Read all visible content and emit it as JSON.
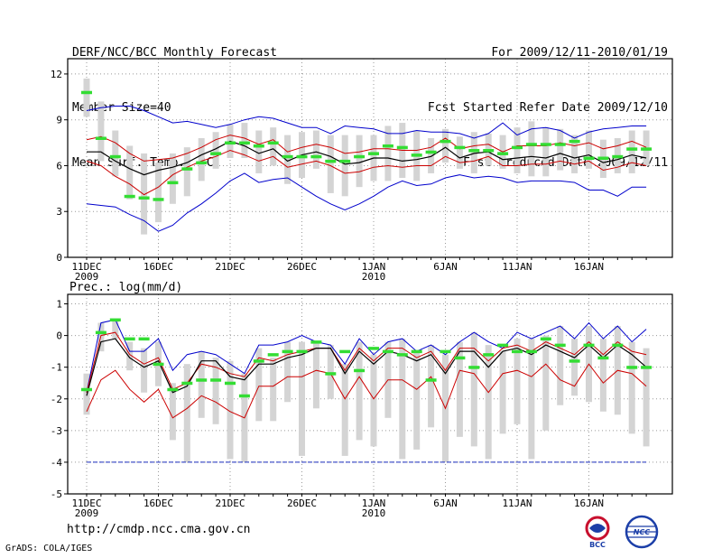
{
  "header": {
    "left_lines": [
      "DERF/NCC/BCC Monthly Forecast",
      "Member Size=40",
      "Mean Surf. Temp.: °C"
    ],
    "right_lines": [
      "For 2009/12/11-2010/01/19",
      "Fcst Started Refer Date 2009/12/10",
      "Fcst Produced Date 2009/12/11"
    ]
  },
  "footer": {
    "url": "http://cmdp.ncc.cma.gov.cn",
    "grads": "GrADS: COLA/IGES"
  },
  "logos": {
    "left": "BCC",
    "right": "NCC",
    "left_icon": "bcc-logo-icon",
    "right_icon": "ncc-logo-icon"
  },
  "colors": {
    "ensemble_max_min": "#0000cc",
    "spread": "#cc0000",
    "mean": "#000000",
    "box": "#d4d4d4",
    "observed": "#33dd33",
    "reference": "#1b2dbf"
  },
  "chart_data": [
    {
      "id": "temperature",
      "type": "line",
      "title": "Mean Surf. Temp.: °C",
      "ylim": [
        0,
        13
      ],
      "yticks": [
        0,
        3,
        6,
        9,
        12
      ],
      "xtick_labels": [
        "11DEC",
        "16DEC",
        "21DEC",
        "26DEC",
        "1JAN",
        "6JAN",
        "11JAN",
        "16JAN"
      ],
      "xtick_year_labels": [
        {
          "at": "11DEC",
          "label": "2009"
        },
        {
          "at": "1JAN",
          "label": "2010"
        }
      ],
      "days": 40,
      "series": [
        {
          "name": "max",
          "values": [
            9.6,
            9.8,
            9.9,
            9.9,
            9.6,
            9.2,
            8.8,
            8.9,
            8.7,
            8.5,
            8.7,
            9.0,
            9.2,
            9.1,
            8.8,
            8.5,
            8.5,
            8.1,
            8.6,
            8.5,
            8.4,
            8.1,
            8.1,
            8.3,
            8.2,
            8.2,
            8.1,
            7.8,
            8.1,
            8.8,
            8.0,
            8.4,
            8.5,
            8.3,
            7.8,
            8.2,
            8.4,
            8.5,
            8.6,
            8.6
          ]
        },
        {
          "name": "upper",
          "values": [
            7.7,
            7.9,
            7.5,
            6.8,
            6.3,
            6.4,
            6.5,
            6.8,
            7.2,
            7.7,
            8.0,
            7.8,
            7.4,
            7.7,
            6.9,
            7.2,
            7.4,
            7.2,
            6.8,
            6.9,
            7.1,
            7.1,
            7.0,
            7.0,
            7.2,
            7.8,
            7.1,
            7.3,
            7.4,
            6.9,
            7.3,
            7.3,
            7.3,
            7.5,
            7.3,
            7.5,
            7.1,
            7.3,
            7.6,
            7.2
          ]
        },
        {
          "name": "mean",
          "values": [
            6.9,
            6.9,
            6.3,
            5.8,
            5.4,
            5.7,
            5.9,
            6.2,
            6.7,
            7.1,
            7.6,
            7.3,
            6.8,
            7.1,
            6.3,
            6.7,
            6.9,
            6.6,
            6.1,
            6.2,
            6.5,
            6.5,
            6.3,
            6.4,
            6.6,
            7.2,
            6.5,
            6.8,
            6.9,
            6.4,
            6.5,
            6.6,
            6.5,
            6.8,
            6.5,
            6.7,
            6.2,
            6.4,
            6.7,
            6.5
          ]
        },
        {
          "name": "lower",
          "values": [
            6.3,
            6.0,
            5.3,
            4.8,
            4.1,
            4.6,
            5.4,
            5.9,
            6.3,
            6.6,
            7.0,
            6.7,
            6.3,
            6.6,
            5.9,
            6.1,
            6.3,
            6.0,
            5.5,
            5.6,
            5.9,
            6.0,
            5.9,
            6.0,
            6.0,
            6.6,
            6.2,
            6.3,
            6.6,
            6.0,
            6.0,
            6.1,
            6.1,
            6.3,
            6.1,
            6.3,
            5.7,
            5.9,
            6.2,
            6.0
          ]
        },
        {
          "name": "min",
          "values": [
            3.5,
            3.4,
            3.3,
            2.8,
            2.4,
            1.7,
            2.1,
            2.9,
            3.5,
            4.2,
            5.0,
            5.5,
            4.9,
            5.1,
            5.2,
            4.6,
            4.0,
            3.5,
            3.1,
            3.5,
            4.0,
            4.6,
            5.0,
            4.7,
            4.8,
            5.2,
            5.4,
            5.2,
            5.3,
            5.2,
            4.9,
            5.0,
            5.0,
            5.0,
            4.9,
            4.4,
            4.4,
            4.0,
            4.6,
            4.6
          ]
        }
      ],
      "boxes": [
        [
          9.2,
          11.7
        ],
        [
          6.3,
          10.2
        ],
        [
          5.3,
          8.3
        ],
        [
          3.8,
          7.3
        ],
        [
          1.5,
          6.8
        ],
        [
          2.3,
          6.2
        ],
        [
          3.5,
          6.8
        ],
        [
          4.0,
          7.2
        ],
        [
          5.0,
          7.8
        ],
        [
          5.8,
          8.2
        ],
        [
          6.5,
          8.7
        ],
        [
          6.5,
          8.8
        ],
        [
          5.5,
          8.3
        ],
        [
          6.0,
          8.5
        ],
        [
          4.8,
          8.0
        ],
        [
          5.2,
          8.2
        ],
        [
          5.8,
          8.3
        ],
        [
          4.2,
          8.0
        ],
        [
          4.0,
          8.0
        ],
        [
          4.6,
          8.0
        ],
        [
          5.0,
          8.0
        ],
        [
          5.0,
          8.6
        ],
        [
          5.2,
          8.8
        ],
        [
          5.0,
          8.3
        ],
        [
          5.5,
          7.8
        ],
        [
          6.2,
          8.4
        ],
        [
          5.8,
          7.9
        ],
        [
          5.5,
          8.2
        ],
        [
          6.0,
          8.1
        ],
        [
          5.8,
          8.0
        ],
        [
          5.5,
          8.5
        ],
        [
          5.3,
          8.9
        ],
        [
          5.3,
          8.5
        ],
        [
          5.7,
          8.4
        ],
        [
          5.5,
          8.0
        ],
        [
          5.8,
          8.3
        ],
        [
          5.2,
          7.7
        ],
        [
          5.5,
          7.8
        ],
        [
          5.5,
          8.3
        ],
        [
          6.0,
          8.3
        ]
      ],
      "observed": [
        10.8,
        7.8,
        6.6,
        4.0,
        3.9,
        3.8,
        4.9,
        5.8,
        6.2,
        6.8,
        7.5,
        7.5,
        7.3,
        7.5,
        6.6,
        6.6,
        6.6,
        6.3,
        6.3,
        6.6,
        6.8,
        7.3,
        7.2,
        6.7,
        6.9,
        7.6,
        7.2,
        7.0,
        7.0,
        6.8,
        7.2,
        7.4,
        7.4,
        7.4,
        7.6,
        6.5,
        6.5,
        6.6,
        7.1,
        7.1
      ]
    },
    {
      "id": "precipitation",
      "type": "line",
      "title": "Prec.: log(mm/d)",
      "ylim": [
        -5,
        1.3
      ],
      "yticks": [
        -5,
        -4,
        -3,
        -2,
        -1,
        0,
        1
      ],
      "xtick_labels": [
        "11DEC",
        "16DEC",
        "21DEC",
        "26DEC",
        "1JAN",
        "6JAN",
        "11JAN",
        "16JAN"
      ],
      "xtick_year_labels": [
        {
          "at": "11DEC",
          "label": "2009"
        },
        {
          "at": "1JAN",
          "label": "2010"
        }
      ],
      "days": 40,
      "series": [
        {
          "name": "max",
          "values": [
            -1.8,
            0.4,
            0.5,
            -0.5,
            -0.5,
            -0.1,
            -1.1,
            -0.6,
            -0.5,
            -0.6,
            -0.9,
            -1.2,
            -0.3,
            -0.3,
            -0.2,
            0.0,
            -0.2,
            -0.3,
            -0.9,
            -0.1,
            -0.6,
            -0.2,
            -0.1,
            -0.5,
            -0.3,
            -0.6,
            -0.2,
            0.1,
            -0.2,
            -0.4,
            0.1,
            -0.1,
            0.1,
            0.3,
            -0.1,
            0.4,
            -0.1,
            0.3,
            -0.2,
            0.2
          ]
        },
        {
          "name": "upper",
          "values": [
            -1.8,
            0.0,
            0.1,
            -0.6,
            -0.9,
            -0.7,
            -1.7,
            -1.5,
            -0.9,
            -1.0,
            -1.2,
            -1.3,
            -0.7,
            -0.8,
            -0.6,
            -0.5,
            -0.4,
            -0.4,
            -1.1,
            -0.4,
            -0.8,
            -0.4,
            -0.4,
            -0.7,
            -0.5,
            -1.1,
            -0.4,
            -0.4,
            -0.8,
            -0.4,
            -0.3,
            -0.5,
            -0.2,
            -0.4,
            -0.6,
            -0.2,
            -0.6,
            -0.2,
            -0.5,
            -0.6
          ]
        },
        {
          "name": "mean",
          "values": [
            -1.9,
            -0.2,
            -0.1,
            -0.7,
            -1.0,
            -0.8,
            -1.8,
            -1.6,
            -0.8,
            -0.8,
            -1.3,
            -1.4,
            -0.9,
            -0.9,
            -0.7,
            -0.6,
            -0.4,
            -0.4,
            -1.2,
            -0.5,
            -0.9,
            -0.5,
            -0.6,
            -0.8,
            -0.6,
            -1.2,
            -0.5,
            -0.5,
            -1.0,
            -0.5,
            -0.4,
            -0.6,
            -0.3,
            -0.5,
            -0.7,
            -0.3,
            -0.7,
            -0.3,
            -0.6,
            -1.0
          ]
        },
        {
          "name": "lower",
          "values": [
            -2.4,
            -1.4,
            -1.1,
            -1.7,
            -2.1,
            -1.7,
            -2.6,
            -2.3,
            -1.9,
            -2.1,
            -2.4,
            -2.6,
            -1.6,
            -1.6,
            -1.3,
            -1.3,
            -1.1,
            -1.2,
            -2.0,
            -1.3,
            -2.0,
            -1.4,
            -1.4,
            -1.7,
            -1.3,
            -2.3,
            -1.1,
            -1.2,
            -1.8,
            -1.2,
            -1.1,
            -1.3,
            -0.9,
            -1.4,
            -1.6,
            -0.9,
            -1.5,
            -1.1,
            -1.2,
            -1.6
          ]
        },
        {
          "name": "reference",
          "values": [
            -4,
            -4,
            -4,
            -4,
            -4,
            -4,
            -4,
            -4,
            -4,
            -4,
            -4,
            -4,
            -4,
            -4,
            -4,
            -4,
            -4,
            -4,
            -4,
            -4,
            -4,
            -4,
            -4,
            -4,
            -4,
            -4,
            -4,
            -4,
            -4,
            -4,
            -4,
            -4,
            -4,
            -4,
            -4,
            -4,
            -4,
            -4,
            -4,
            -4
          ]
        }
      ],
      "boxes": [
        [
          -2.5,
          -1.2
        ],
        [
          -0.5,
          0.4
        ],
        [
          -0.1,
          0.5
        ],
        [
          -1.1,
          -0.2
        ],
        [
          -1.8,
          -0.4
        ],
        [
          -1.6,
          -0.2
        ],
        [
          -3.3,
          -1.5
        ],
        [
          -4.0,
          -0.9
        ],
        [
          -2.6,
          -0.5
        ],
        [
          -2.8,
          -0.7
        ],
        [
          -3.9,
          -0.8
        ],
        [
          -4.0,
          -1.2
        ],
        [
          -2.7,
          -0.4
        ],
        [
          -2.7,
          -0.7
        ],
        [
          -2.1,
          -0.2
        ],
        [
          -3.8,
          -0.2
        ],
        [
          -2.3,
          -0.2
        ],
        [
          -2.0,
          -0.3
        ],
        [
          -3.8,
          -0.9
        ],
        [
          -3.3,
          -0.2
        ],
        [
          -3.5,
          -0.6
        ],
        [
          -2.6,
          -0.2
        ],
        [
          -3.9,
          -0.1
        ],
        [
          -3.6,
          -0.5
        ],
        [
          -2.9,
          -0.3
        ],
        [
          -4.0,
          -0.6
        ],
        [
          -3.2,
          -0.2
        ],
        [
          -3.5,
          0.1
        ],
        [
          -3.9,
          -0.3
        ],
        [
          -3.1,
          -0.5
        ],
        [
          -2.8,
          -0.1
        ],
        [
          -3.9,
          -0.1
        ],
        [
          -3.0,
          0.0
        ],
        [
          -2.2,
          0.3
        ],
        [
          -1.9,
          -0.1
        ],
        [
          -2.1,
          0.3
        ],
        [
          -2.4,
          -0.1
        ],
        [
          -2.5,
          0.3
        ],
        [
          -3.1,
          -0.2
        ],
        [
          -3.5,
          -0.4
        ]
      ],
      "observed": [
        -1.7,
        0.1,
        0.5,
        -0.1,
        -0.1,
        -0.9,
        -1.7,
        -1.5,
        -1.4,
        -1.4,
        -1.5,
        -1.9,
        -0.8,
        -0.6,
        -0.5,
        -0.5,
        -0.2,
        -1.2,
        -0.5,
        -1.1,
        -0.4,
        -0.5,
        -0.6,
        -0.5,
        -1.4,
        -0.5,
        -0.7,
        -1.0,
        -0.6,
        -0.3,
        -0.5,
        -0.5,
        -0.1,
        -0.3,
        -0.8,
        -0.3,
        -0.7,
        -0.3,
        -1.0,
        -1.0
      ]
    }
  ]
}
